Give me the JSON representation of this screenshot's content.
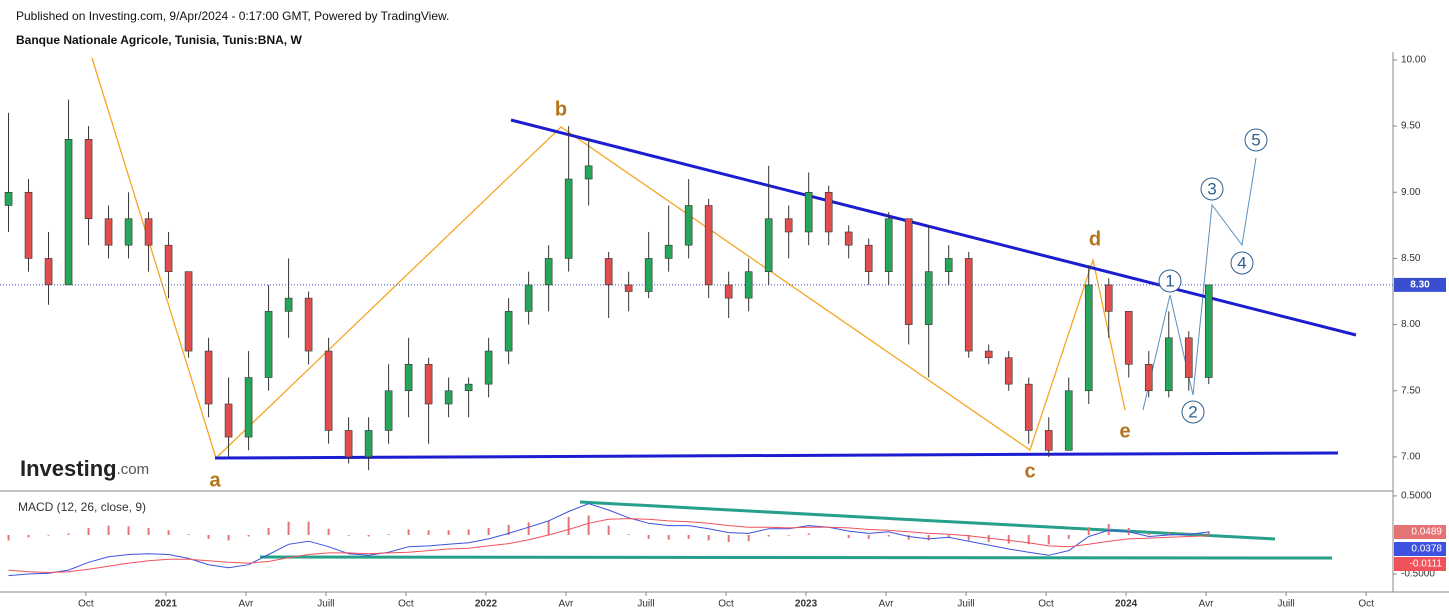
{
  "header": {
    "published": "Published on Investing.com, 9/Apr/2024 - 0:17:00 GMT, Powered by TradingView.",
    "title": "Banque Nationale Agricole, Tunisia, Tunis:BNA, W",
    "logo": "Investing",
    "logo_suffix": ".com"
  },
  "chart_data": [
    {
      "type": "candlestick",
      "up_color": "#26a65b",
      "down_color": "#e04d4d",
      "x": [
        -5.9,
        -5.15,
        -4.4,
        -3.65,
        -2.9,
        -2.15,
        -1.4,
        -0.65,
        0.1,
        0.85,
        1.6,
        2.35,
        3.1,
        3.85,
        4.6,
        5.35,
        6.1,
        6.85,
        7.6,
        8.35,
        9.1,
        9.85,
        10.6,
        11.35,
        12.1,
        12.85,
        13.6,
        14.35,
        15.1,
        15.85,
        16.6,
        17.35,
        18.1,
        18.85,
        19.6,
        20.35,
        21.1,
        21.85,
        22.6,
        23.35,
        24.1,
        24.85,
        25.6,
        26.35,
        27.1,
        27.85,
        28.6,
        29.35,
        30.1,
        30.85,
        31.6,
        32.35,
        33.1,
        33.85,
        34.6,
        35.35,
        36.1,
        36.85,
        37.6,
        38.35,
        39.1
      ],
      "open": [
        8.9,
        9.0,
        8.5,
        8.3,
        9.4,
        8.8,
        8.6,
        8.8,
        8.6,
        8.4,
        7.8,
        7.4,
        7.15,
        7.6,
        8.1,
        8.2,
        7.8,
        7.2,
        7.0,
        7.2,
        7.5,
        7.7,
        7.4,
        7.5,
        7.55,
        7.8,
        8.1,
        8.3,
        8.5,
        9.1,
        8.5,
        8.3,
        8.25,
        8.5,
        8.6,
        8.9,
        8.3,
        8.2,
        8.4,
        8.8,
        8.7,
        9.0,
        8.7,
        8.6,
        8.4,
        8.8,
        8.0,
        8.4,
        8.5,
        7.8,
        7.75,
        7.55,
        7.2,
        7.05,
        7.5,
        8.3,
        8.1,
        7.7,
        7.5,
        7.9,
        7.6
      ],
      "high": [
        9.6,
        9.1,
        8.7,
        9.7,
        9.5,
        8.9,
        9.0,
        8.85,
        8.7,
        8.4,
        7.9,
        7.6,
        7.8,
        8.3,
        8.5,
        8.25,
        7.9,
        7.3,
        7.3,
        7.7,
        7.9,
        7.75,
        7.6,
        7.6,
        7.9,
        8.2,
        8.4,
        8.6,
        9.5,
        9.4,
        8.55,
        8.4,
        8.7,
        8.9,
        9.1,
        8.95,
        8.4,
        8.5,
        9.2,
        8.9,
        9.15,
        9.05,
        8.75,
        8.65,
        8.85,
        8.8,
        8.75,
        8.6,
        8.55,
        7.85,
        7.8,
        7.6,
        7.3,
        7.6,
        8.45,
        8.35,
        8.1,
        7.8,
        8.1,
        7.95,
        8.3
      ],
      "low": [
        8.7,
        8.4,
        8.15,
        8.3,
        8.6,
        8.5,
        8.5,
        8.4,
        8.2,
        7.75,
        7.3,
        7.0,
        7.05,
        7.5,
        7.9,
        7.7,
        7.1,
        6.95,
        6.9,
        7.1,
        7.3,
        7.1,
        7.3,
        7.3,
        7.45,
        7.7,
        8.0,
        8.1,
        8.4,
        8.9,
        8.05,
        8.1,
        8.2,
        8.4,
        8.5,
        8.2,
        8.05,
        8.1,
        8.3,
        8.5,
        8.6,
        8.6,
        8.5,
        8.3,
        8.3,
        7.85,
        7.6,
        8.3,
        7.75,
        7.7,
        7.5,
        7.1,
        7.0,
        7.05,
        7.4,
        7.9,
        7.6,
        7.45,
        7.45,
        7.5,
        7.55
      ],
      "close": [
        9.0,
        8.5,
        8.3,
        9.4,
        8.8,
        8.6,
        8.8,
        8.6,
        8.4,
        7.8,
        7.4,
        7.15,
        7.6,
        8.1,
        8.2,
        7.8,
        7.2,
        7.0,
        7.2,
        7.5,
        7.7,
        7.4,
        7.5,
        7.55,
        7.8,
        8.1,
        8.3,
        8.5,
        9.1,
        9.2,
        8.3,
        8.25,
        8.5,
        8.6,
        8.9,
        8.3,
        8.2,
        8.4,
        8.8,
        8.7,
        9.0,
        8.7,
        8.6,
        8.4,
        8.8,
        8.0,
        8.4,
        8.5,
        7.8,
        7.75,
        7.55,
        7.2,
        7.05,
        7.5,
        8.3,
        8.1,
        7.7,
        7.5,
        7.9,
        7.6,
        8.3
      ],
      "last_price": {
        "value": 8.3,
        "label": "8.30"
      },
      "xlim": [
        -6.22,
        45.97
      ],
      "xticks": [
        {
          "value": -3,
          "label": "Oct"
        },
        {
          "value": 0,
          "label": "2021"
        },
        {
          "value": 3,
          "label": "Avr"
        },
        {
          "value": 6,
          "label": "Juill"
        },
        {
          "value": 9,
          "label": "Oct"
        },
        {
          "value": 12,
          "label": "2022"
        },
        {
          "value": 15,
          "label": "Avr"
        },
        {
          "value": 18,
          "label": "Juill"
        },
        {
          "value": 21,
          "label": "Oct"
        },
        {
          "value": 24,
          "label": "2023"
        },
        {
          "value": 27,
          "label": "Avr"
        },
        {
          "value": 30,
          "label": "Juill"
        },
        {
          "value": 33,
          "label": "Oct"
        },
        {
          "value": 36,
          "label": "2024"
        },
        {
          "value": 39,
          "label": "Avr"
        },
        {
          "value": 42,
          "label": "Juill"
        },
        {
          "value": 45,
          "label": "Oct"
        }
      ],
      "ylim": [
        6.75,
        10.06
      ],
      "yticks": [
        {
          "value": 7,
          "label": "7.00"
        },
        {
          "value": 7.5,
          "label": "7.50"
        },
        {
          "value": 8,
          "label": "8.00"
        },
        {
          "value": 8.5,
          "label": "8.50"
        },
        {
          "value": 9,
          "label": "9.00"
        },
        {
          "value": 9.5,
          "label": "9.50"
        },
        {
          "value": 10,
          "label": "10.00"
        }
      ],
      "wave_labels": [
        "a",
        "b",
        "c",
        "d",
        "e"
      ],
      "wave_numbers": [
        "1",
        "2",
        "3",
        "4",
        "5"
      ]
    },
    {
      "type": "macd",
      "title": "MACD (12, 26, close, 9)",
      "ylim": [
        -0.73,
        0.55
      ],
      "yticks": [
        {
          "value": 0.5,
          "label": "0.5000"
        },
        {
          "value": -0.5,
          "label": "-0.5000"
        }
      ],
      "histogram": {
        "color": "#e57373",
        "values": [
          -0.07,
          -0.03,
          -0.01,
          0.02,
          0.09,
          0.12,
          0.11,
          0.09,
          0.06,
          0.01,
          -0.05,
          -0.07,
          -0.02,
          0.09,
          0.17,
          0.17,
          0.08,
          -0.01,
          -0.02,
          0.01,
          0.07,
          0.06,
          0.06,
          0.07,
          0.09,
          0.13,
          0.16,
          0.18,
          0.23,
          0.25,
          0.12,
          0.01,
          -0.05,
          -0.06,
          -0.05,
          -0.07,
          -0.09,
          -0.08,
          -0.02,
          -0.01,
          0.02,
          0.0,
          -0.04,
          -0.05,
          -0.02,
          -0.06,
          -0.07,
          -0.04,
          -0.07,
          -0.09,
          -0.11,
          -0.12,
          -0.12,
          -0.05,
          0.1,
          0.14,
          0.09,
          0.02,
          0.03,
          0.03,
          0.0489
        ],
        "last_label": "0.0489"
      },
      "series": [
        {
          "color": "#3f51e0",
          "values": [
            -0.52,
            -0.5,
            -0.49,
            -0.45,
            -0.35,
            -0.28,
            -0.25,
            -0.24,
            -0.25,
            -0.3,
            -0.38,
            -0.42,
            -0.38,
            -0.25,
            -0.12,
            -0.08,
            -0.15,
            -0.24,
            -0.26,
            -0.22,
            -0.15,
            -0.14,
            -0.12,
            -0.1,
            -0.05,
            0.02,
            0.1,
            0.18,
            0.3,
            0.4,
            0.32,
            0.22,
            0.15,
            0.12,
            0.12,
            0.08,
            0.03,
            0.02,
            0.08,
            0.08,
            0.12,
            0.1,
            0.05,
            0.02,
            0.04,
            -0.02,
            -0.05,
            -0.03,
            -0.08,
            -0.13,
            -0.18,
            -0.22,
            -0.26,
            -0.2,
            -0.02,
            0.06,
            0.04,
            -0.02,
            0.0,
            0.01,
            0.0378
          ],
          "last_label": "0.0378"
        },
        {
          "color": "#f0525a",
          "values": [
            -0.45,
            -0.47,
            -0.48,
            -0.47,
            -0.44,
            -0.4,
            -0.36,
            -0.33,
            -0.31,
            -0.31,
            -0.33,
            -0.35,
            -0.36,
            -0.34,
            -0.29,
            -0.25,
            -0.23,
            -0.23,
            -0.24,
            -0.23,
            -0.22,
            -0.2,
            -0.18,
            -0.17,
            -0.14,
            -0.11,
            -0.06,
            0.0,
            0.07,
            0.15,
            0.2,
            0.21,
            0.2,
            0.18,
            0.17,
            0.15,
            0.12,
            0.1,
            0.1,
            0.09,
            0.1,
            0.1,
            0.09,
            0.07,
            0.06,
            0.04,
            0.02,
            0.01,
            -0.01,
            -0.04,
            -0.07,
            -0.1,
            -0.14,
            -0.15,
            -0.12,
            -0.08,
            -0.05,
            -0.04,
            -0.03,
            -0.02,
            -0.0111
          ],
          "last_label": "-0.0111"
        }
      ]
    }
  ]
}
